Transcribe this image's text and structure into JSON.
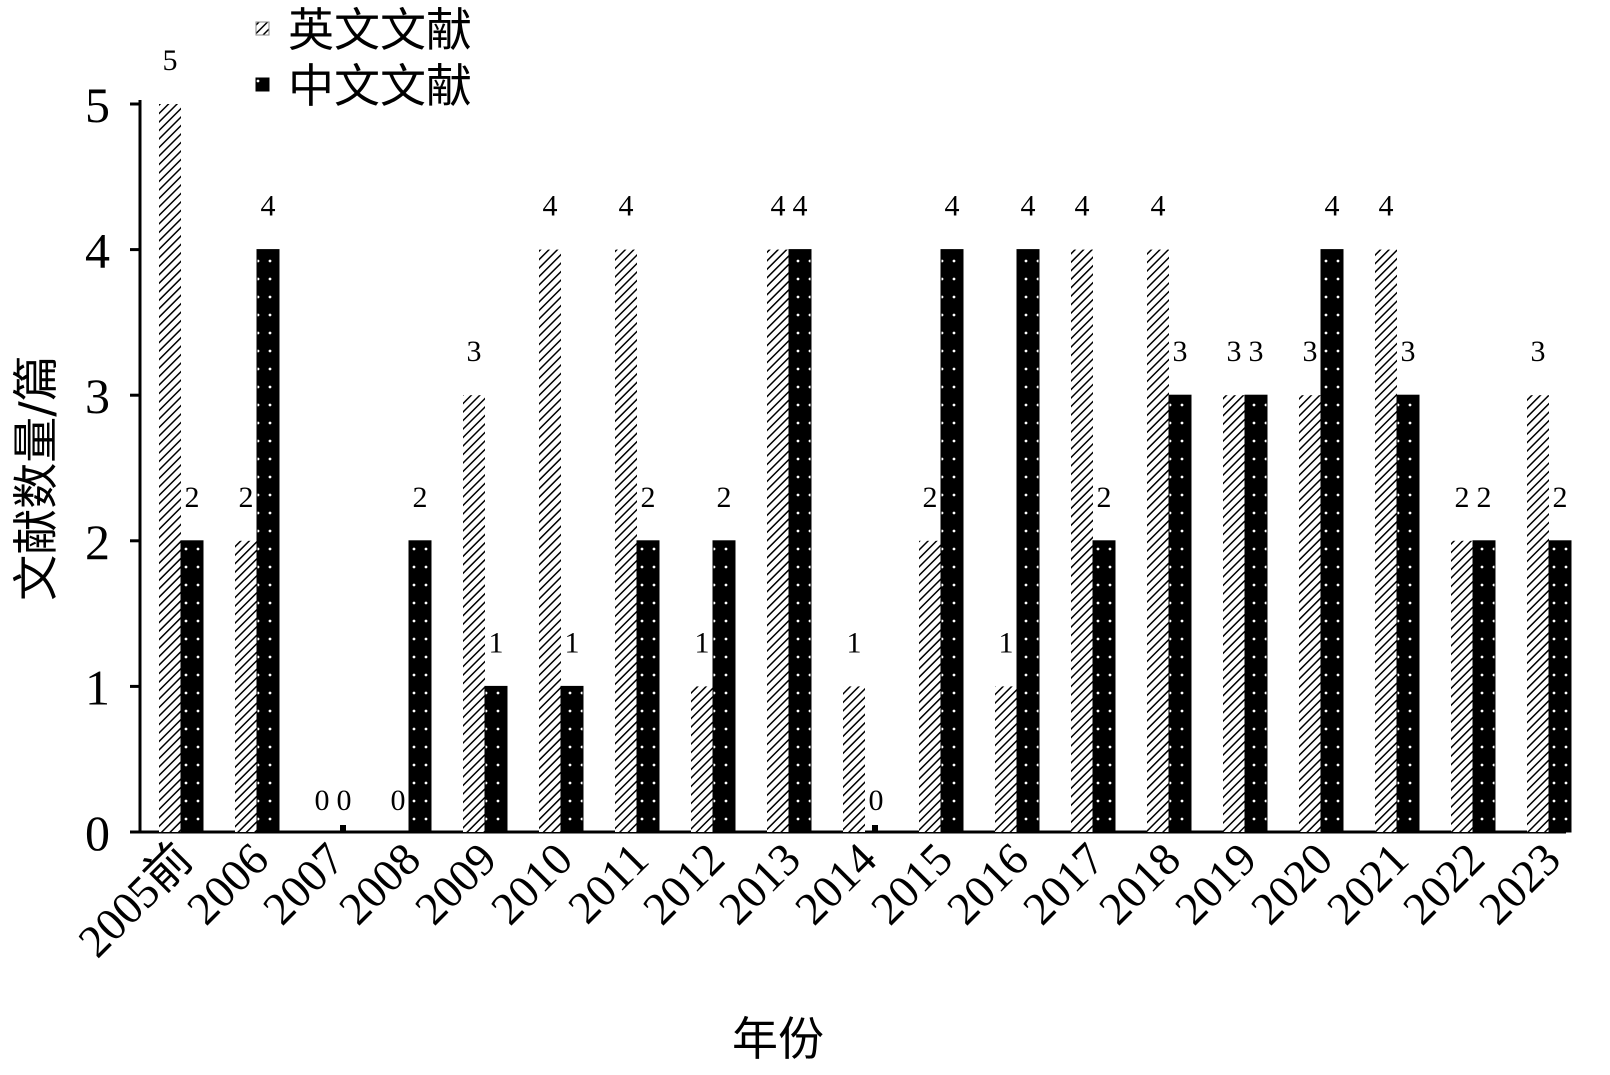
{
  "chart_data": {
    "type": "bar",
    "title": "",
    "xlabel": "年份",
    "ylabel": "文献数量/篇",
    "ylim": [
      0,
      5
    ],
    "yticks": [
      "0",
      "1",
      "2",
      "3",
      "4",
      "5"
    ],
    "categories": [
      "2005前",
      "2006",
      "2007",
      "2008",
      "2009",
      "2010",
      "2011",
      "2012",
      "2013",
      "2014",
      "2015",
      "2016",
      "2017",
      "2018",
      "2019",
      "2020",
      "2021",
      "2022",
      "2023"
    ],
    "series": [
      {
        "name": "英文文献",
        "pattern": "hatched",
        "values": [
          5,
          2,
          0,
          0,
          3,
          4,
          4,
          1,
          4,
          1,
          2,
          1,
          4,
          4,
          3,
          3,
          4,
          2,
          3
        ]
      },
      {
        "name": "中文文献",
        "pattern": "black-dotted",
        "values": [
          2,
          4,
          0,
          2,
          1,
          1,
          2,
          2,
          4,
          0,
          4,
          4,
          2,
          3,
          3,
          4,
          3,
          2,
          2
        ]
      }
    ],
    "legend_position": "top-left",
    "grid": false,
    "data_labels": true
  },
  "colors": {
    "bar_dark": "#000000",
    "hatch": "#000000",
    "background": "#ffffff"
  }
}
